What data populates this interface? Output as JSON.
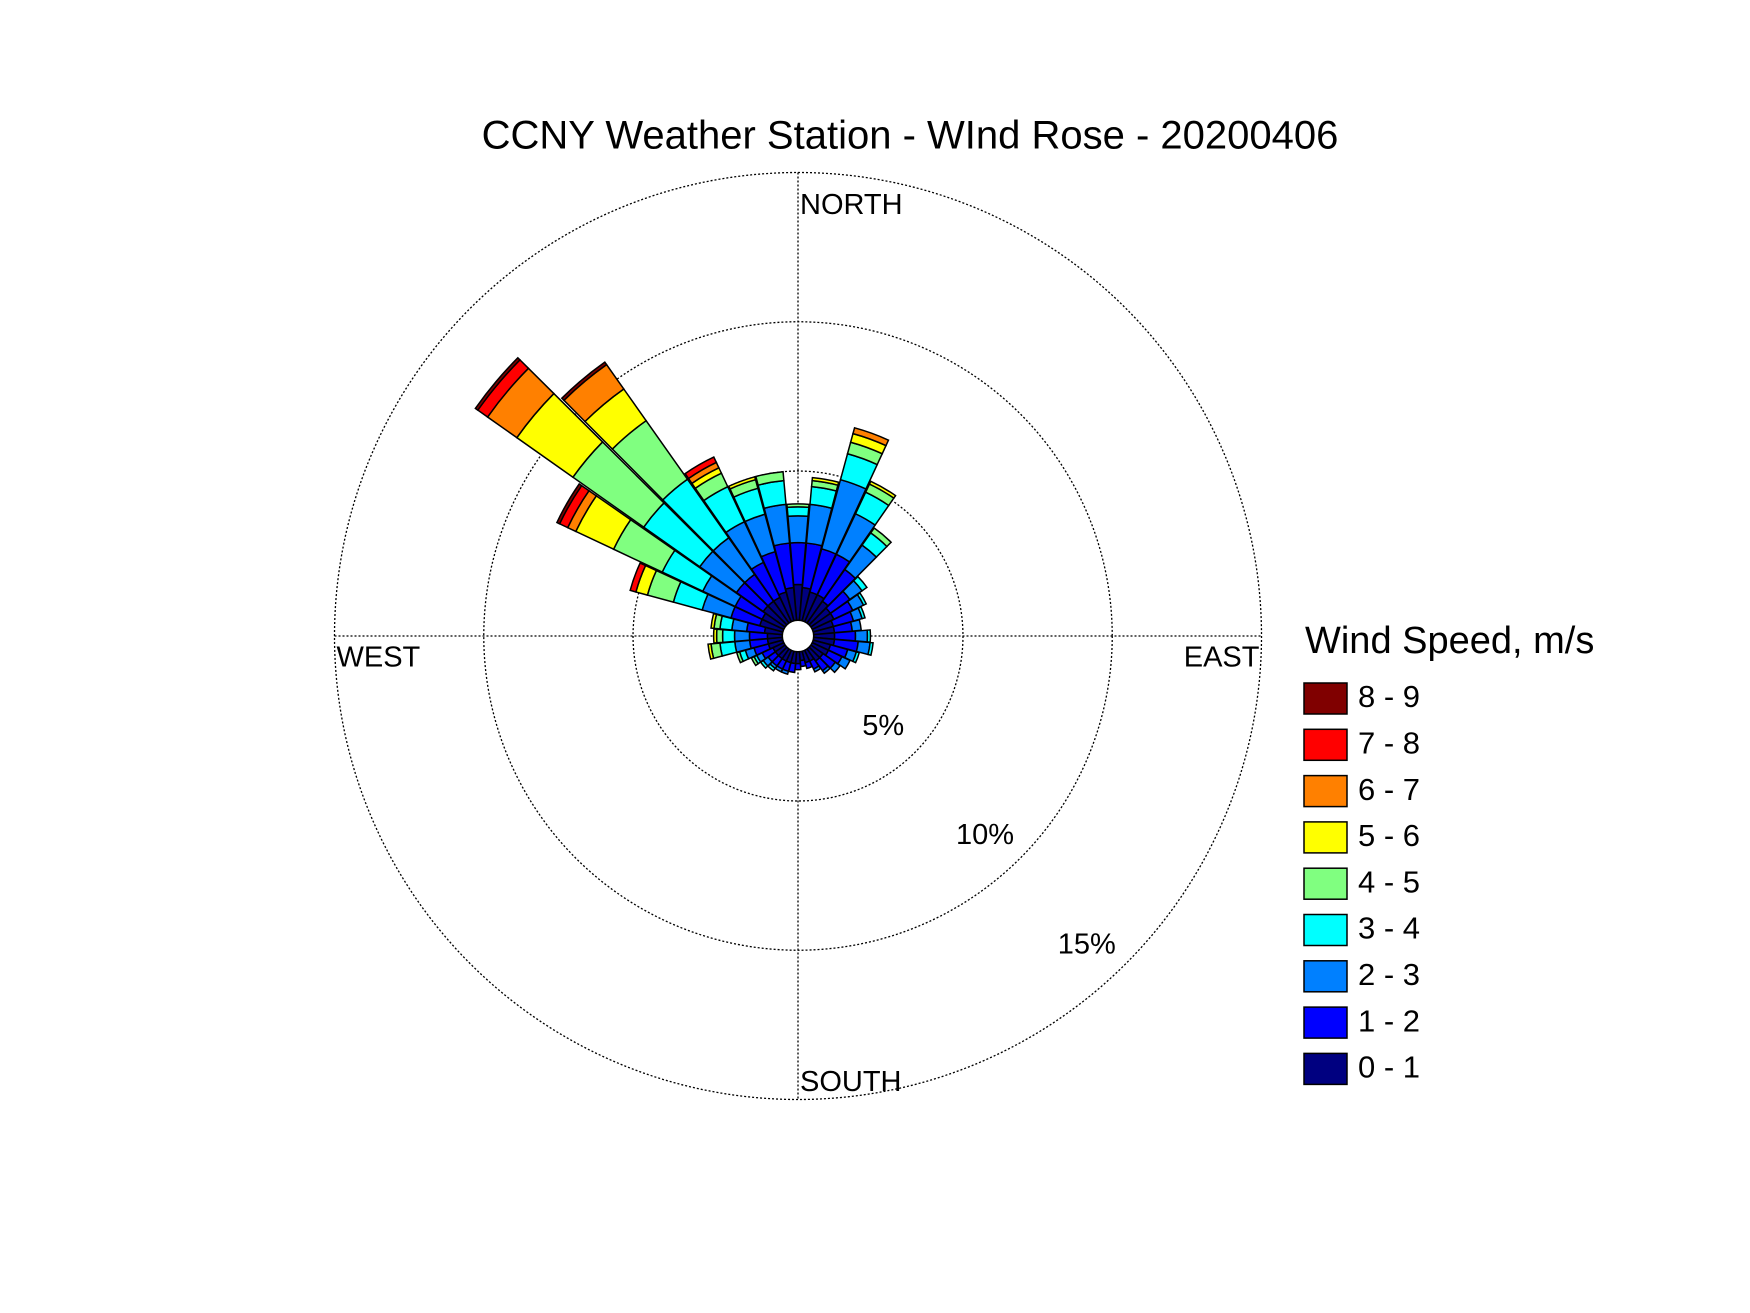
{
  "chart_data": {
    "type": "windrose",
    "title": "CCNY Weather Station - WInd Rose - 20200406",
    "legend_title": "Wind Speed, m/s",
    "axis_labels": {
      "north": "NORTH",
      "east": "EAST",
      "south": "SOUTH",
      "west": "WEST"
    },
    "directions": [
      0,
      10,
      20,
      30,
      40,
      50,
      60,
      70,
      80,
      90,
      100,
      110,
      120,
      130,
      140,
      150,
      160,
      170,
      180,
      190,
      200,
      210,
      220,
      230,
      240,
      250,
      260,
      270,
      280,
      290,
      300,
      310,
      320,
      330,
      340,
      350
    ],
    "rlim": [
      0,
      15
    ],
    "rticks": [
      {
        "value": 5,
        "label": "5%"
      },
      {
        "value": 10,
        "label": "10%"
      },
      {
        "value": 15,
        "label": "15%"
      }
    ],
    "grid": true,
    "legend": "right",
    "series": [
      {
        "name": "0 - 1",
        "color": "#000080",
        "values": [
          1.2,
          1.1,
          1.0,
          1.0,
          0.9,
          0.8,
          0.8,
          0.7,
          0.7,
          0.7,
          0.7,
          0.6,
          0.6,
          0.5,
          0.5,
          0.4,
          0.4,
          0.3,
          0.4,
          0.4,
          0.4,
          0.4,
          0.4,
          0.4,
          0.4,
          0.5,
          0.5,
          0.5,
          0.6,
          0.8,
          0.8,
          0.9,
          0.9,
          0.9,
          1.0,
          1.1
        ]
      },
      {
        "name": "1 - 2",
        "color": "#0000ff",
        "values": [
          1.4,
          1.5,
          1.5,
          1.5,
          1.3,
          0.8,
          0.7,
          0.7,
          0.6,
          0.7,
          0.8,
          0.6,
          0.5,
          0.5,
          0.4,
          0.3,
          0.2,
          0.2,
          0.2,
          0.3,
          0.3,
          0.3,
          0.3,
          0.3,
          0.4,
          0.5,
          0.6,
          0.6,
          0.6,
          1.0,
          1.0,
          1.1,
          1.1,
          1.3,
          1.4,
          1.5
        ]
      },
      {
        "name": "2 - 3",
        "color": "#0080ff",
        "values": [
          0.9,
          1.3,
          2.4,
          1.5,
          1.0,
          0.5,
          0.4,
          0.3,
          0.3,
          0.4,
          0.4,
          0.3,
          0.3,
          0.2,
          0.1,
          0.1,
          0,
          0,
          0,
          0,
          0.1,
          0.1,
          0.1,
          0.2,
          0.2,
          0.3,
          0.5,
          0.5,
          0.5,
          1.0,
          1.2,
          1.5,
          1.5,
          1.5,
          1.3,
          1.3
        ]
      },
      {
        "name": "3 - 4",
        "color": "#00ffff",
        "values": [
          0.3,
          0.6,
          0.9,
          0.8,
          0.5,
          0.2,
          0.1,
          0.1,
          0,
          0.1,
          0.1,
          0.1,
          0,
          0,
          0,
          0,
          0,
          0,
          0,
          0,
          0,
          0,
          0.1,
          0.1,
          0.1,
          0.2,
          0.5,
          0.4,
          0.4,
          1.0,
          1.5,
          2.3,
          2.4,
          1.3,
          0.9,
          0.8
        ]
      },
      {
        "name": "4 - 5",
        "color": "#80ff80",
        "values": [
          0.1,
          0.2,
          0.4,
          0.3,
          0.2,
          0,
          0,
          0,
          0,
          0,
          0,
          0,
          0,
          0,
          0,
          0,
          0,
          0,
          0,
          0,
          0,
          0,
          0,
          0,
          0.1,
          0.1,
          0.3,
          0.2,
          0.2,
          0.9,
          1.8,
          2.9,
          2.4,
          0.5,
          0.3,
          0.3
        ]
      },
      {
        "name": "5 - 6",
        "color": "#ffff00",
        "values": [
          0,
          0.1,
          0.3,
          0.1,
          0,
          0,
          0,
          0,
          0,
          0,
          0,
          0,
          0,
          0,
          0,
          0,
          0,
          0,
          0,
          0,
          0,
          0,
          0,
          0,
          0,
          0,
          0.1,
          0.1,
          0.1,
          0.4,
          1.4,
          2.3,
          1.3,
          0.2,
          0.1,
          0
        ]
      },
      {
        "name": "6 - 7",
        "color": "#ff8000",
        "values": [
          0,
          0,
          0.2,
          0,
          0,
          0,
          0,
          0,
          0,
          0,
          0,
          0,
          0,
          0,
          0,
          0,
          0,
          0,
          0,
          0,
          0,
          0,
          0,
          0,
          0,
          0,
          0,
          0,
          0,
          0,
          0.3,
          1.2,
          1.0,
          0.2,
          0,
          0
        ]
      },
      {
        "name": "7 - 8",
        "color": "#ff0000",
        "values": [
          0,
          0,
          0,
          0,
          0,
          0,
          0,
          0,
          0,
          0,
          0,
          0,
          0,
          0,
          0,
          0,
          0,
          0,
          0,
          0,
          0,
          0,
          0,
          0,
          0,
          0,
          0,
          0,
          0,
          0.2,
          0.3,
          0.4,
          0,
          0.2,
          0,
          0
        ]
      },
      {
        "name": "8 - 9",
        "color": "#800000",
        "values": [
          0,
          0,
          0,
          0,
          0,
          0,
          0,
          0,
          0,
          0,
          0,
          0,
          0,
          0,
          0,
          0,
          0,
          0,
          0,
          0,
          0,
          0,
          0,
          0,
          0,
          0,
          0,
          0,
          0,
          0,
          0.1,
          0.1,
          0.1,
          0,
          0,
          0
        ]
      }
    ]
  }
}
